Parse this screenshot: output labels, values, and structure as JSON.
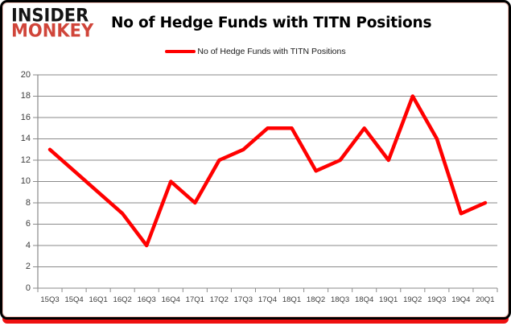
{
  "brand": {
    "line1": "INSIDER",
    "line2": "MONKEY",
    "line2_color": "#d0453a"
  },
  "header": {
    "title": "No of Hedge Funds with TITN Positions"
  },
  "legend": {
    "label": "No of Hedge Funds with TITN Positions",
    "swatch_color": "#ff0000"
  },
  "frame": {
    "border_color": "#000000",
    "bottom_bar_color": "#ee1111"
  },
  "chart_data": {
    "type": "line",
    "title": "No of Hedge Funds with TITN Positions",
    "series": [
      {
        "name": "No of Hedge Funds with TITN Positions",
        "values": [
          13,
          11,
          9,
          7,
          4,
          10,
          8,
          12,
          13,
          15,
          15,
          11,
          12,
          15,
          12,
          18,
          14,
          7,
          8
        ]
      }
    ],
    "categories": [
      "15Q3",
      "15Q4",
      "16Q1",
      "16Q2",
      "16Q3",
      "16Q4",
      "17Q1",
      "17Q2",
      "17Q3",
      "17Q4",
      "18Q1",
      "18Q2",
      "18Q3",
      "18Q4",
      "19Q1",
      "19Q2",
      "19Q3",
      "19Q4",
      "20Q1"
    ],
    "yticks": [
      0,
      2,
      4,
      6,
      8,
      10,
      12,
      14,
      16,
      18,
      20
    ],
    "ylim": [
      0,
      20
    ],
    "xlabel": "",
    "ylabel": "",
    "grid": "on",
    "legend_position": "top-center",
    "line_color": "#ff0000",
    "grid_color": "#8a8a8a"
  }
}
